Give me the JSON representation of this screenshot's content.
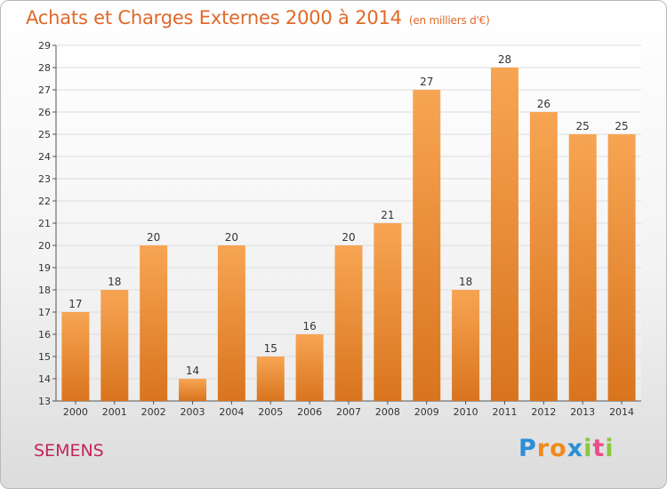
{
  "header": {
    "title": "Achats et Charges Externes 2000 à 2014",
    "subtitle": "(en milliers d'€)"
  },
  "place_name": "SEMENS",
  "logo": {
    "letters": [
      "P",
      "r",
      "o",
      "x",
      "i",
      "t",
      "i"
    ],
    "colors": [
      "#2a8fd6",
      "#f08a1c",
      "#f08a1c",
      "#2a8fd6",
      "#8cc63f",
      "#e94e8a",
      "#8cc63f"
    ]
  },
  "colors": {
    "bar_top": "#f7a553",
    "bar_bottom": "#d9741e",
    "grid": "#dddddd",
    "axis": "#555555"
  },
  "chart_data": {
    "type": "bar",
    "title": "Achats et Charges Externes 2000 à 2014",
    "subtitle": "(en milliers d'€)",
    "categories": [
      "2000",
      "2001",
      "2002",
      "2003",
      "2004",
      "2005",
      "2006",
      "2007",
      "2008",
      "2009",
      "2010",
      "2011",
      "2012",
      "2013",
      "2014"
    ],
    "values": [
      17,
      18,
      20,
      14,
      20,
      15,
      16,
      20,
      21,
      27,
      18,
      28,
      26,
      25,
      25
    ],
    "ylim": [
      13,
      29
    ],
    "yticks": [
      13,
      14,
      15,
      16,
      17,
      18,
      19,
      20,
      21,
      22,
      23,
      24,
      25,
      26,
      27,
      28,
      29
    ],
    "grid": true,
    "xlabel": "",
    "ylabel": ""
  }
}
